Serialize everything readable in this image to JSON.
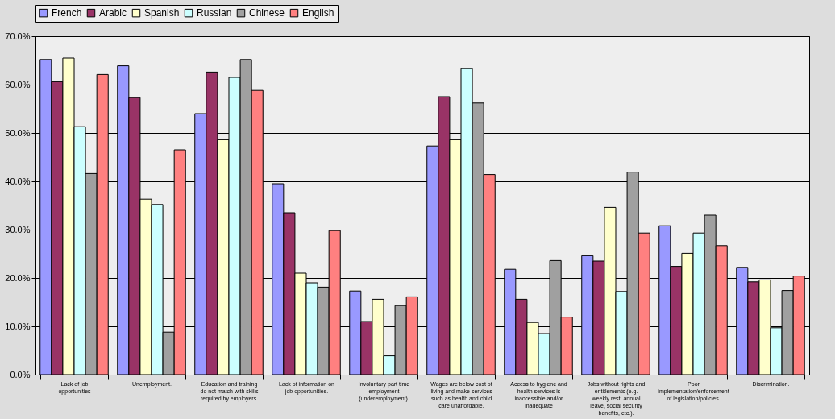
{
  "chart_data": {
    "type": "bar",
    "categories": [
      "Lack of job opportunities",
      "Unemployment.",
      "Education and training do not match with skills required by employers.",
      "Lack of information on job opportunities.",
      "Involuntary part time employment (underemployment).",
      "Wages are below cost of living and make services such as health and child care unaffordable.",
      "Access to hygiene and health services is inaccessible and/or inadequate",
      "Jobs without rights and entitlements (e.g. weekly rest, annual leave, social security benefits, etc.).",
      "Poor implementation/enforcement of legislation/policies.",
      "Discrimination."
    ],
    "series": [
      {
        "name": "French",
        "color": "#9999ff",
        "values": [
          65.2,
          63.9,
          54.0,
          39.5,
          17.3,
          47.3,
          21.8,
          24.6,
          30.8,
          22.2
        ]
      },
      {
        "name": "Arabic",
        "color": "#993366",
        "values": [
          60.6,
          57.3,
          62.6,
          33.5,
          11.0,
          57.5,
          15.6,
          23.5,
          22.4,
          19.2
        ]
      },
      {
        "name": "Spanish",
        "color": "#ffffcc",
        "values": [
          65.5,
          36.3,
          48.6,
          21.0,
          15.6,
          48.6,
          10.8,
          34.6,
          25.1,
          19.6
        ]
      },
      {
        "name": "Russian",
        "color": "#ccffff",
        "values": [
          51.3,
          35.2,
          61.5,
          19.0,
          3.9,
          63.3,
          8.5,
          17.2,
          29.3,
          9.7
        ]
      },
      {
        "name": "Chinese",
        "color": "#a0a0a0",
        "values": [
          41.6,
          8.8,
          65.2,
          18.1,
          14.3,
          56.2,
          23.6,
          41.9,
          33.0,
          17.4
        ]
      },
      {
        "name": "English",
        "color": "#ff8080",
        "values": [
          62.1,
          46.5,
          58.8,
          29.8,
          16.1,
          41.4,
          11.9,
          29.3,
          26.7,
          20.4
        ]
      }
    ],
    "ylim": [
      0,
      70
    ],
    "yticks": [
      {
        "value": 0,
        "label": "0.0%"
      },
      {
        "value": 10,
        "label": "10.0%"
      },
      {
        "value": 20,
        "label": "20.0%"
      },
      {
        "value": 30,
        "label": "30.0%"
      },
      {
        "value": 40,
        "label": "40.0%"
      },
      {
        "value": 50,
        "label": "50.0%"
      },
      {
        "value": 60,
        "label": "60.0%"
      },
      {
        "value": 70,
        "label": "70.0%"
      }
    ],
    "grid": "y",
    "legend": "top"
  }
}
